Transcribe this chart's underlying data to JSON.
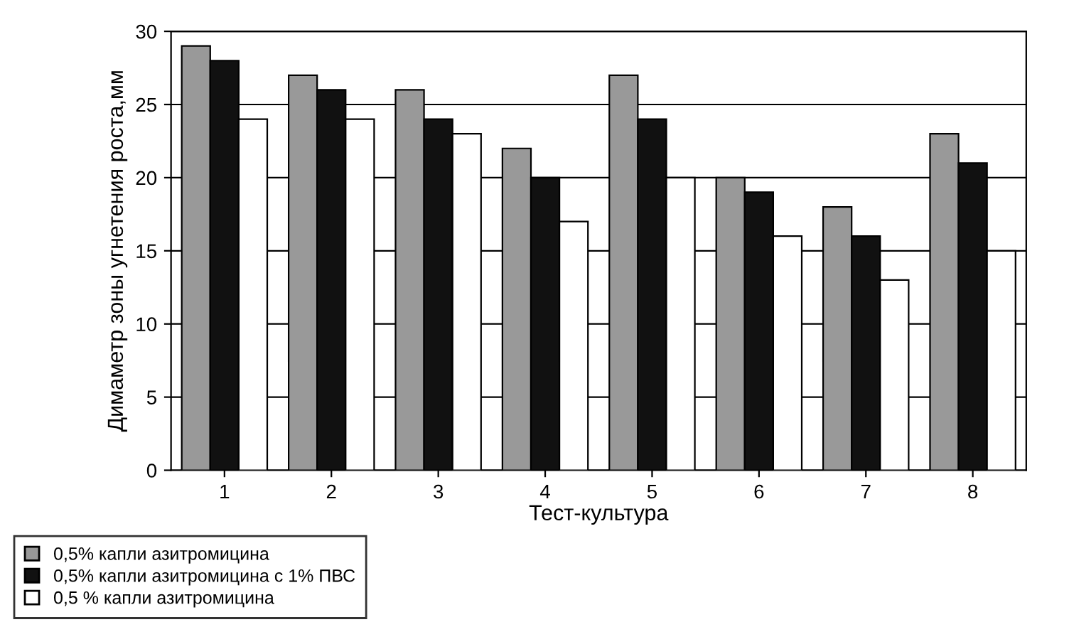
{
  "chart_data": {
    "type": "bar",
    "xlabel": "Тест-культура",
    "ylabel": "Димаметр зоны угнетения роста,мм",
    "categories": [
      "1",
      "2",
      "3",
      "4",
      "5",
      "6",
      "7",
      "8"
    ],
    "series": [
      {
        "name": "0,5% капли азитромицина",
        "color": "#999999",
        "values": [
          29,
          27,
          26,
          22,
          27,
          20,
          18,
          23
        ]
      },
      {
        "name": "0,5% капли азитромицина с 1% ПВС",
        "color": "#111111",
        "values": [
          28,
          26,
          24,
          20,
          24,
          19,
          16,
          21
        ]
      },
      {
        "name": "0,5 % капли азитромицина",
        "color": "#ffffff",
        "values": [
          24,
          24,
          23,
          17,
          20,
          16,
          13,
          15
        ]
      }
    ],
    "ylim": [
      0,
      30
    ],
    "yticks": [
      0,
      5,
      10,
      15,
      20,
      25,
      30
    ],
    "grid": "y",
    "legend": "bottom"
  }
}
